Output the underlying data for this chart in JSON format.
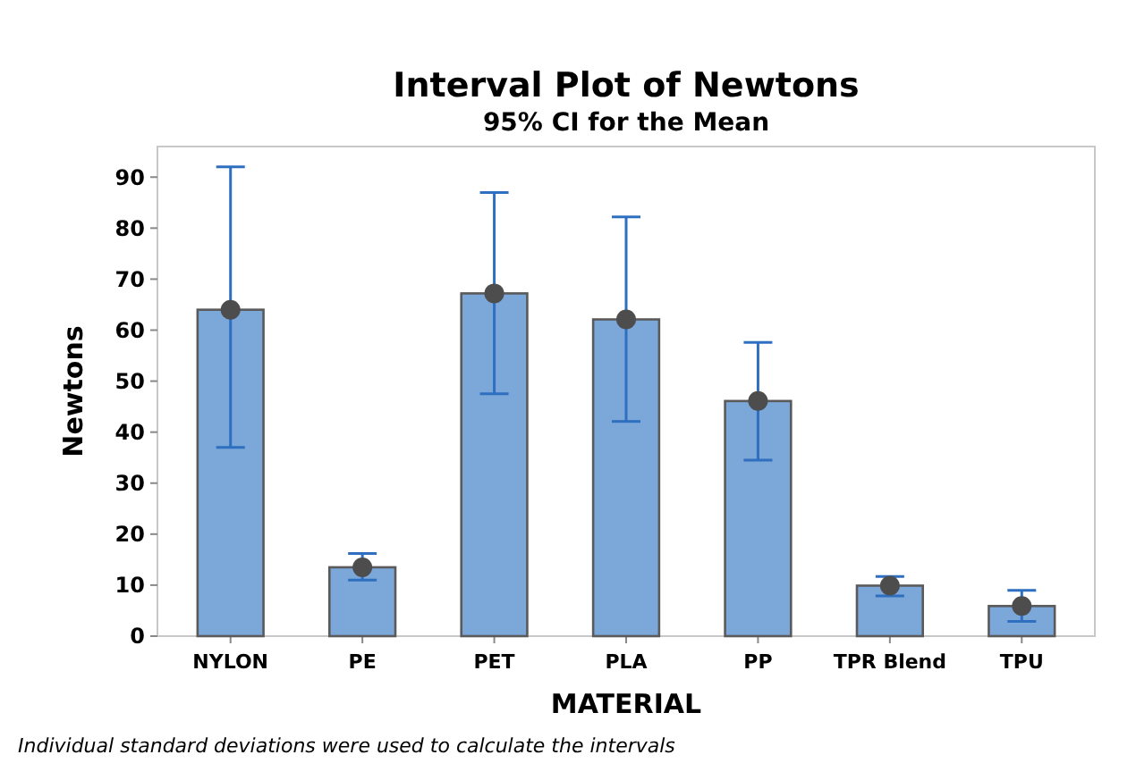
{
  "chart_data": {
    "type": "bar",
    "title": "Interval Plot of Newtons",
    "subtitle": "95% CI for the Mean",
    "xlabel": "MATERIAL",
    "ylabel": "Newtons",
    "categories": [
      "NYLON",
      "PE",
      "PET",
      "PLA",
      "PP",
      "TPR Blend",
      "TPU"
    ],
    "series": [
      {
        "type": "bar",
        "color": "#7ba7d9",
        "values": [
          64,
          13.5,
          67.2,
          62.1,
          46.1,
          9.9,
          5.9
        ],
        "errors": [
          [
            37,
            92
          ],
          [
            11,
            16.2
          ],
          [
            47.5,
            87
          ],
          [
            42.1,
            82.2
          ],
          [
            34.5,
            57.6
          ],
          [
            7.9,
            11.7
          ],
          [
            2.9,
            9
          ]
        ]
      },
      {
        "type": "scatter",
        "color": "#4d4d4d",
        "marker": "circle",
        "x": [
          "NYLON",
          "PE",
          "PET",
          "PLA",
          "PP",
          "TPR Blend",
          "TPU"
        ],
        "values": [
          64,
          13.5,
          67.2,
          62.1,
          46.1,
          9.9,
          5.9
        ]
      }
    ],
    "ylim": [
      0,
      96
    ],
    "yticks": [
      0,
      10,
      20,
      30,
      40,
      50,
      60,
      70,
      80,
      90
    ],
    "grid": false,
    "annotations": [
      "Individual standard deviations were used to calculate the intervals"
    ]
  }
}
